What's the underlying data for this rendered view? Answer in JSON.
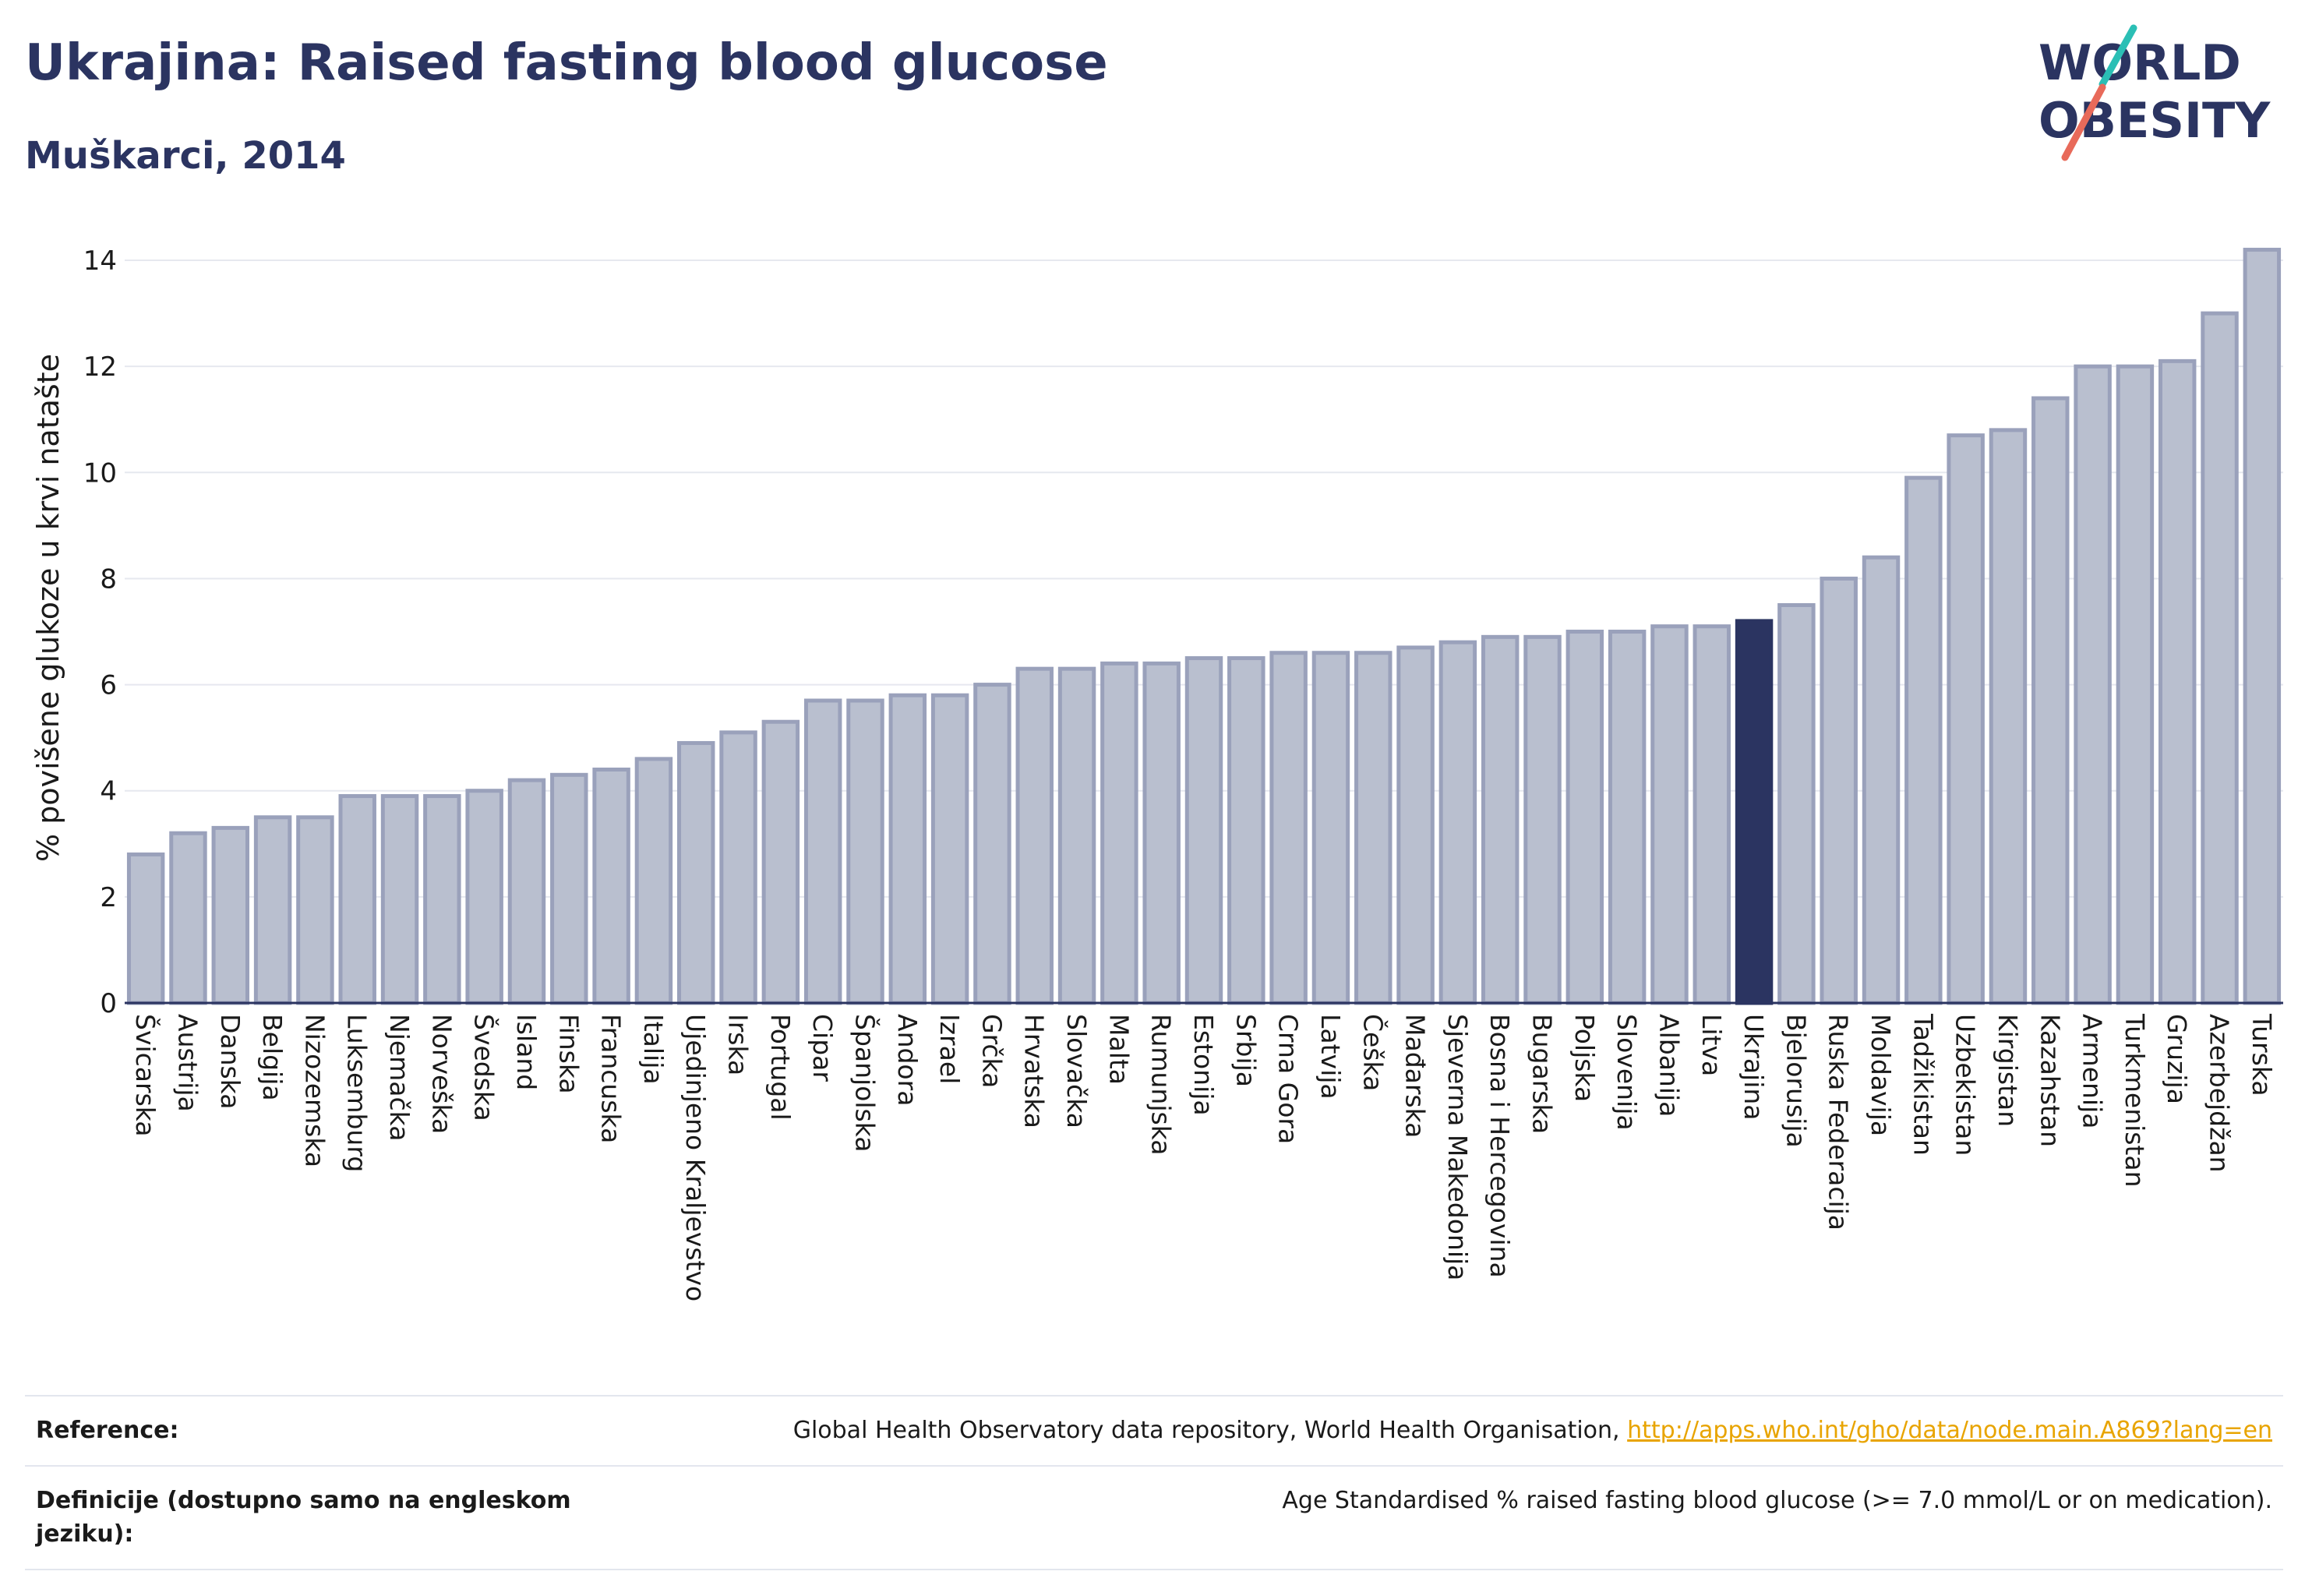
{
  "header": {
    "title": "Ukrajina: Raised fasting blood glucose",
    "subtitle": "Muškarci, 2014"
  },
  "logo": {
    "line1": "WORLD",
    "line2": "OBESITY"
  },
  "chart_data": {
    "type": "bar",
    "ylabel": "% povišene glukoze u krvi natašte",
    "ylim": [
      0,
      14.5
    ],
    "yticks": [
      0,
      2,
      4,
      6,
      8,
      10,
      12,
      14
    ],
    "grid": true,
    "highlight": "Ukrajina",
    "colors": {
      "bar": "#b9bfcf",
      "bar_edge": "#9aa1bb",
      "highlight": "#2b3461"
    },
    "categories": [
      "Švicarska",
      "Austrija",
      "Danska",
      "Belgija",
      "Nizozemska",
      "Luksemburg",
      "Njemačka",
      "Norveška",
      "Švedska",
      "Island",
      "Finska",
      "Francuska",
      "Italija",
      "Ujedinjeno Kraljevstvo",
      "Irska",
      "Portugal",
      "Cipar",
      "Španjolska",
      "Andora",
      "Izrael",
      "Grčka",
      "Hrvatska",
      "Slovačka",
      "Malta",
      "Rumunjska",
      "Estonija",
      "Srbija",
      "Crna Gora",
      "Latvija",
      "Češka",
      "Mađarska",
      "Sjeverna Makedonija",
      "Bosna i Hercegovina",
      "Bugarska",
      "Poljska",
      "Slovenija",
      "Albanija",
      "Litva",
      "Ukrajina",
      "Bjelorusija",
      "Ruska Federacija",
      "Moldavija",
      "Tadžikistan",
      "Uzbekistan",
      "Kirgistan",
      "Kazahstan",
      "Armenija",
      "Turkmenistan",
      "Gruzija",
      "Azerbejdžan",
      "Turska"
    ],
    "values": [
      2.8,
      3.2,
      3.3,
      3.5,
      3.5,
      3.9,
      3.9,
      3.9,
      4.0,
      4.2,
      4.3,
      4.4,
      4.6,
      4.9,
      5.1,
      5.3,
      5.7,
      5.7,
      5.8,
      5.8,
      6.0,
      6.3,
      6.3,
      6.4,
      6.4,
      6.5,
      6.5,
      6.6,
      6.6,
      6.6,
      6.7,
      6.8,
      6.9,
      6.9,
      7.0,
      7.0,
      7.1,
      7.1,
      7.2,
      7.5,
      8.0,
      8.4,
      9.9,
      10.7,
      10.8,
      11.4,
      12.0,
      12.0,
      12.1,
      13.0,
      14.2
    ]
  },
  "references": {
    "ref_label": "Reference:",
    "ref_text": "Global Health Observatory data repository, World Health Organisation,",
    "ref_link": "http://apps.who.int/gho/data/node.main.A869?lang=en",
    "def_label": "Definicije (dostupno samo na engleskom jeziku):",
    "def_text": "Age Standardised % raised fasting blood glucose (>= 7.0 mmol/L or on medication)."
  }
}
